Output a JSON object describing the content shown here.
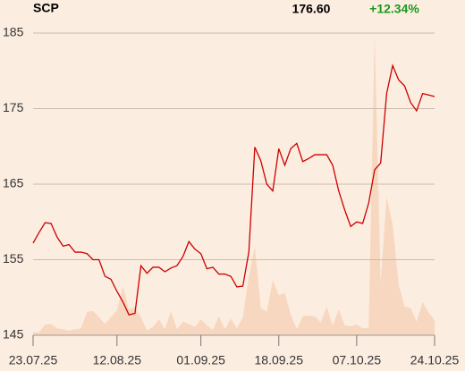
{
  "header": {
    "symbol": "SCP",
    "price": "176.60",
    "change": "+12.34%"
  },
  "chart_data": {
    "type": "line",
    "categories": [
      "23.07.25",
      null,
      null,
      null,
      null,
      null,
      null,
      null,
      null,
      null,
      null,
      null,
      null,
      null,
      "12.08.25",
      null,
      null,
      null,
      null,
      null,
      null,
      null,
      null,
      null,
      null,
      null,
      null,
      null,
      "01.09.25",
      null,
      null,
      null,
      null,
      null,
      null,
      null,
      null,
      null,
      null,
      null,
      null,
      "18.09.25",
      null,
      null,
      null,
      null,
      null,
      null,
      null,
      null,
      null,
      null,
      null,
      null,
      "07.10.25",
      null,
      null,
      null,
      null,
      null,
      null,
      null,
      null,
      null,
      null,
      null,
      null,
      "24.10.25"
    ],
    "series": [
      {
        "color": "#cc0000",
        "values": [
          157.2,
          158.6,
          159.9,
          159.8,
          158.0,
          156.8,
          157.0,
          156.0,
          156.0,
          155.8,
          155.0,
          155.0,
          152.8,
          152.4,
          150.8,
          149.4,
          147.7,
          147.9,
          154.2,
          153.2,
          154.0,
          154.0,
          153.4,
          153.9,
          154.2,
          155.4,
          157.4,
          156.4,
          155.8,
          153.8,
          154.0,
          153.1,
          153.1,
          152.8,
          151.4,
          151.5,
          156.0,
          169.9,
          168.1,
          165.0,
          164.1,
          169.7,
          167.5,
          169.7,
          170.4,
          168.0,
          168.4,
          168.9,
          168.9,
          168.9,
          167.5,
          164.1,
          161.6,
          159.4,
          160.0,
          159.8,
          162.5,
          166.9,
          167.8,
          177.0,
          180.7,
          178.8,
          178.0,
          175.8,
          174.7,
          177.0,
          176.8,
          176.6
        ]
      }
    ],
    "volume": {
      "color": "#f7d7bf",
      "values": [
        0.4,
        0.4,
        1.4,
        1.5,
        0.9,
        0.8,
        0.6,
        0.8,
        0.9,
        3.1,
        3.2,
        2.4,
        1.5,
        2.4,
        3.3,
        6.5,
        3.4,
        3.8,
        2.4,
        0.6,
        1.1,
        2.1,
        0.8,
        3.2,
        0.8,
        1.8,
        1.5,
        1.1,
        2.1,
        1.3,
        0.7,
        2.5,
        0.8,
        2.2,
        0.9,
        2.4,
        7.7,
        11.8,
        3.6,
        3.1,
        7.3,
        5.3,
        5.6,
        2.7,
        0.8,
        2.5,
        2.6,
        2.5,
        1.7,
        3.8,
        1.3,
        3.4,
        1.3,
        1.2,
        1.4,
        0.9,
        1.0,
        39.6,
        7.0,
        18.3,
        14.6,
        6.7,
        3.8,
        3.6,
        1.8,
        4.4,
        3.0,
        2.0
      ]
    },
    "ylim": [
      145,
      185
    ],
    "yticks": [
      145,
      155,
      165,
      175,
      185
    ],
    "grid": true
  }
}
